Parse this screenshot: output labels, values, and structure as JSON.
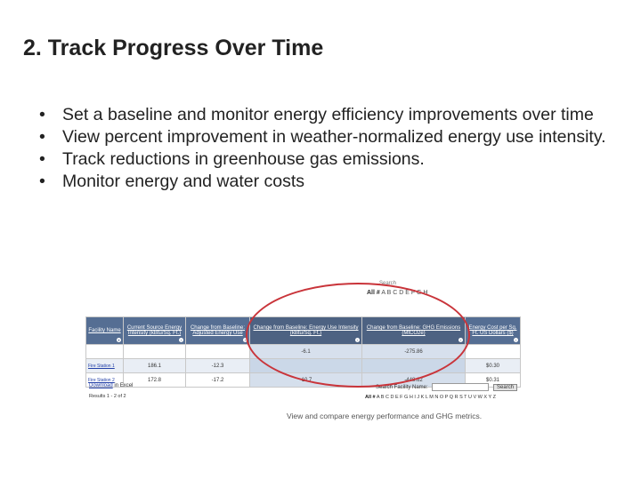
{
  "slide": {
    "title": "2. Track Progress Over Time",
    "bullets": [
      "Set a baseline and monitor energy efficiency improvements over time",
      "View percent improvement in weather-normalized energy use intensity.",
      "Track reductions in greenhouse gas emissions.",
      "Monitor energy and water costs"
    ]
  },
  "screenshot": {
    "search_label_top": "Search",
    "alpha_top_all": "All #",
    "alpha_top_letters": "A B C D E F G H",
    "columns": [
      "Facility Name",
      "Current Source Energy Intensity (kBtu/Sq. Ft.)",
      "Change from Baseline: Adjusted Energy Use",
      "Change from Baseline: Energy Use Intensity (kBtu/Sq. Ft.)",
      "Change from Baseline: GHG Emissions (MtCO2e)",
      "Energy Cost per Sq. Ft. US Dollars ($)"
    ],
    "rows": [
      [
        "",
        "",
        "",
        "-6.1",
        "-275.86",
        ""
      ],
      [
        "Fire Station 1",
        "186.1",
        "-12.3",
        "",
        "",
        "$0.30"
      ],
      [
        "Fire Station 2",
        "172.8",
        "-17.2",
        "-10.7",
        "-448.62",
        "$0.31"
      ]
    ],
    "download_link": "Download",
    "download_suffix": "in Excel",
    "results": "Results 1 - 2 of 2",
    "search_facility_label": "Search Facility Name:",
    "search_button": "Search",
    "alpha_bottom_all": "All #",
    "alpha_bottom_letters": "A B C D E F G H I J K L M N O P Q R S T U V W X Y Z",
    "caption": "View and compare energy performance and GHG metrics."
  }
}
